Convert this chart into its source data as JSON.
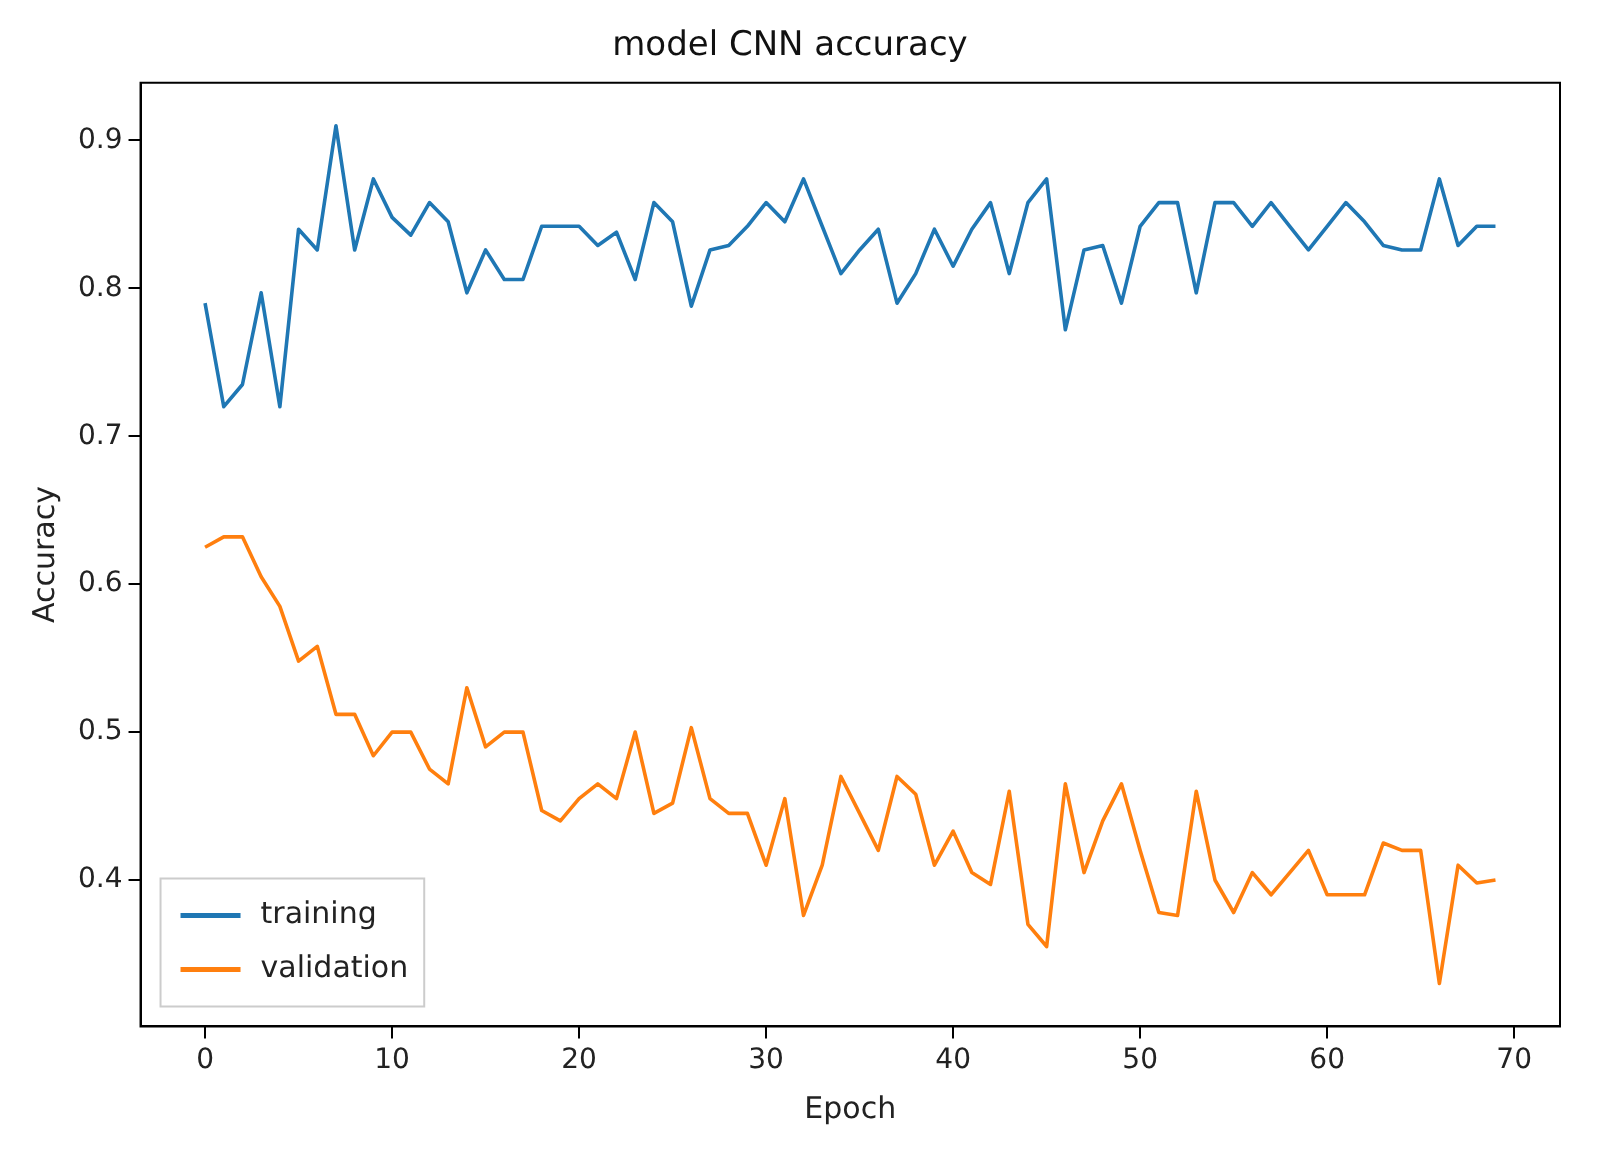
{
  "chart_data": {
    "type": "line",
    "title": "model CNN accuracy",
    "xlabel": "Epoch",
    "ylabel": "Accuracy",
    "x": [
      0,
      1,
      2,
      3,
      4,
      5,
      6,
      7,
      8,
      9,
      10,
      11,
      12,
      13,
      14,
      15,
      16,
      17,
      18,
      19,
      20,
      21,
      22,
      23,
      24,
      25,
      26,
      27,
      28,
      29,
      30,
      31,
      32,
      33,
      34,
      35,
      36,
      37,
      38,
      39,
      40,
      41,
      42,
      43,
      44,
      45,
      46,
      47,
      48,
      49,
      50,
      51,
      52,
      53,
      54,
      55,
      56,
      57,
      58,
      59,
      60,
      61,
      62,
      63,
      64,
      65,
      66,
      67,
      68,
      69
    ],
    "series": [
      {
        "name": "training",
        "color": "#1f77b4",
        "values": [
          0.79,
          0.72,
          0.735,
          0.797,
          0.72,
          0.84,
          0.826,
          0.91,
          0.826,
          0.874,
          0.848,
          0.836,
          0.858,
          0.845,
          0.797,
          0.826,
          0.806,
          0.806,
          0.842,
          0.842,
          0.842,
          0.829,
          0.838,
          0.806,
          0.858,
          0.845,
          0.788,
          0.826,
          0.829,
          0.842,
          0.858,
          0.845,
          0.874,
          0.842,
          0.81,
          0.826,
          0.84,
          0.79,
          0.81,
          0.84,
          0.815,
          0.84,
          0.858,
          0.81,
          0.858,
          0.874,
          0.772,
          0.826,
          0.829,
          0.79,
          0.842,
          0.858,
          0.858,
          0.797,
          0.858,
          0.858,
          0.842,
          0.858,
          0.842,
          0.826,
          0.842,
          0.858,
          0.845,
          0.829,
          0.826,
          0.826,
          0.874,
          0.829,
          0.842,
          0.842
        ]
      },
      {
        "name": "validation",
        "color": "#ff7f0e",
        "values": [
          0.625,
          0.632,
          0.632,
          0.605,
          0.585,
          0.548,
          0.558,
          0.512,
          0.512,
          0.484,
          0.5,
          0.5,
          0.475,
          0.465,
          0.53,
          0.49,
          0.5,
          0.5,
          0.447,
          0.44,
          0.455,
          0.465,
          0.455,
          0.5,
          0.445,
          0.452,
          0.503,
          0.455,
          0.445,
          0.445,
          0.41,
          0.455,
          0.376,
          0.41,
          0.47,
          0.445,
          0.42,
          0.47,
          0.458,
          0.41,
          0.433,
          0.405,
          0.397,
          0.46,
          0.37,
          0.355,
          0.465,
          0.405,
          0.44,
          0.465,
          0.42,
          0.378,
          0.376,
          0.46,
          0.4,
          0.378,
          0.405,
          0.39,
          0.405,
          0.42,
          0.39,
          0.39,
          0.39,
          0.425,
          0.42,
          0.42,
          0.33,
          0.41,
          0.398,
          0.4
        ]
      }
    ],
    "xlim": [
      -3.45,
      72.45
    ],
    "xticks": [
      0,
      10,
      20,
      30,
      40,
      50,
      60,
      70
    ],
    "ylim": [
      0.301,
      0.939
    ],
    "yticks": [
      0.4,
      0.5,
      0.6,
      0.7,
      0.8,
      0.9
    ],
    "grid": false,
    "legend": "bottom left",
    "marker": "none",
    "line_style": "solid"
  }
}
